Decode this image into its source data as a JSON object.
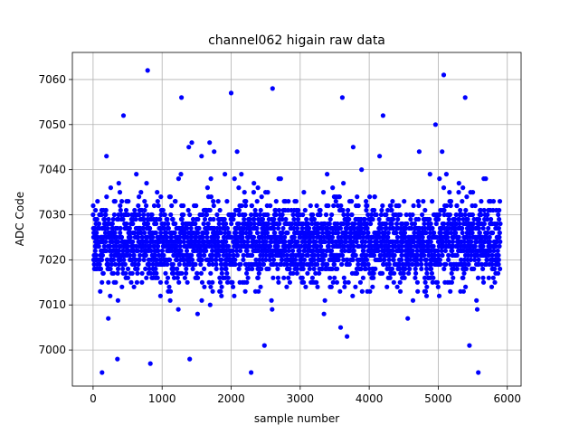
{
  "chart_data": {
    "type": "scatter",
    "title": "channel062 higain raw data",
    "xlabel": "sample number",
    "ylabel": "ADC Code",
    "xlim": [
      -300,
      6200
    ],
    "ylim": [
      6992,
      7066
    ],
    "xticks": [
      0,
      1000,
      2000,
      3000,
      4000,
      5000,
      6000
    ],
    "yticks": [
      7000,
      7010,
      7020,
      7030,
      7040,
      7050,
      7060
    ],
    "grid": true,
    "marker_color": "#0000ff",
    "n_samples": 5900,
    "value_range": [
      6995,
      7062
    ],
    "typical_band": [
      7012,
      7038
    ],
    "center": 7024,
    "notable_points": [
      {
        "x": 130,
        "y": 6995
      },
      {
        "x": 790,
        "y": 7062
      },
      {
        "x": 1280,
        "y": 7056
      },
      {
        "x": 2000,
        "y": 7057
      },
      {
        "x": 2290,
        "y": 6995
      },
      {
        "x": 2600,
        "y": 7058
      },
      {
        "x": 3610,
        "y": 7056
      },
      {
        "x": 5080,
        "y": 7061
      },
      {
        "x": 5390,
        "y": 7056
      },
      {
        "x": 5580,
        "y": 6995
      },
      {
        "x": 830,
        "y": 6997
      },
      {
        "x": 1400,
        "y": 6998
      },
      {
        "x": 440,
        "y": 7052
      },
      {
        "x": 4200,
        "y": 7052
      },
      {
        "x": 4960,
        "y": 7050
      }
    ]
  }
}
